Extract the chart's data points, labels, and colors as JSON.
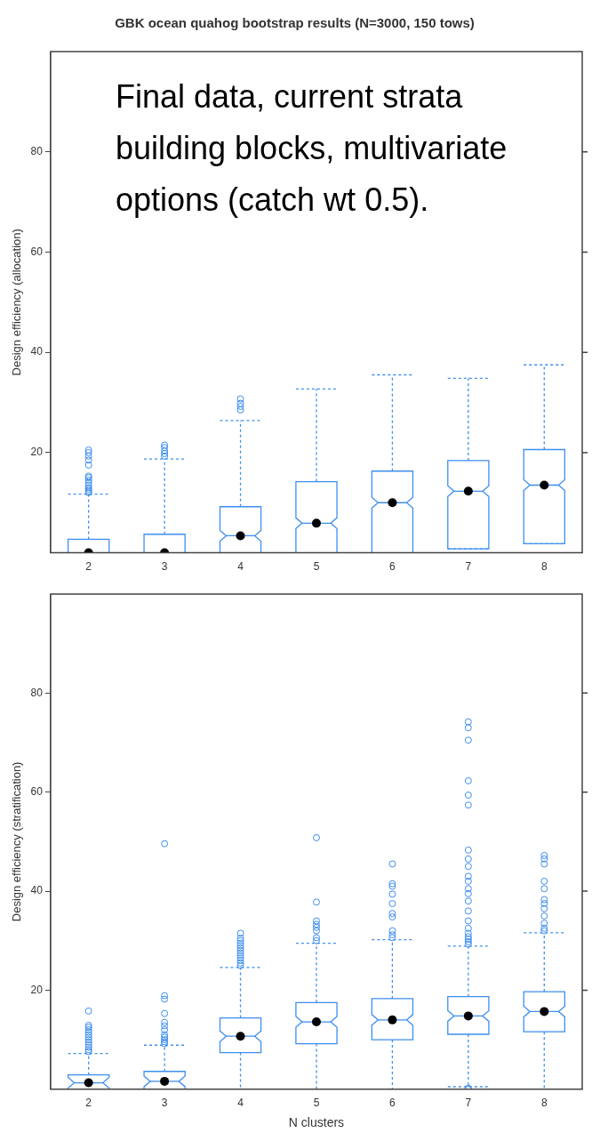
{
  "chart_data": [
    {
      "type": "box",
      "title": "GBK ocean quahog bootstrap results (N=3000, 150 tows)",
      "ylabel": "Design efficiency (allocation)",
      "annotations": [
        "Final data, current strata building blocks, multivariate options (catch wt 0.5)."
      ],
      "categories": [
        "2",
        "3",
        "4",
        "5",
        "6",
        "7",
        "8"
      ],
      "color": "#3d8ef0",
      "ylim": [
        0,
        100
      ],
      "yticks": [
        20,
        40,
        60,
        80
      ],
      "grid": false,
      "boxes": [
        {
          "low": 0,
          "q1": 0,
          "median": 0,
          "mean": 0,
          "q3": 2.7,
          "high": 11.7,
          "outliers": [
            12,
            12.3,
            12.7,
            13,
            13.5,
            14,
            14.5,
            15,
            15.3,
            17.5,
            18.5,
            19.3,
            20,
            20.5
          ]
        },
        {
          "low": 0,
          "q1": 0,
          "median": 0,
          "mean": 0,
          "q3": 3.7,
          "high": 18.7,
          "outliers": [
            19.3,
            19.8,
            20.3,
            21,
            21.5
          ]
        },
        {
          "low": 0,
          "q1": 0,
          "median": 3.4,
          "mean": 3.4,
          "q3": 9.2,
          "high": 26.4,
          "outliers": [
            28.5,
            29.2,
            29.8,
            30.7
          ]
        },
        {
          "low": 0,
          "q1": 0,
          "median": 5.9,
          "mean": 5.9,
          "q3": 14.2,
          "high": 32.7
        },
        {
          "low": 0,
          "q1": 0,
          "median": 10,
          "mean": 10,
          "q3": 16.3,
          "high": 35.5
        },
        {
          "low": 0.8,
          "q1": 0.8,
          "median": 12.3,
          "mean": 12.3,
          "q3": 18.4,
          "high": 34.8
        },
        {
          "low": 1.8,
          "q1": 1.8,
          "median": 13.5,
          "mean": 13.5,
          "q3": 20.6,
          "high": 37.5
        }
      ]
    },
    {
      "type": "box",
      "ylabel": "Design efficiency (stratification)",
      "xlabel": "N clusters",
      "categories": [
        "2",
        "3",
        "4",
        "5",
        "6",
        "7",
        "8"
      ],
      "color": "#3d8ef0",
      "ylim": [
        0,
        100
      ],
      "yticks": [
        20,
        40,
        60,
        80
      ],
      "grid": false,
      "boxes": [
        {
          "low": 0,
          "q1": 0,
          "median": 1.3,
          "mean": 1.3,
          "q3": 2.9,
          "high": 7.2,
          "outliers": [
            7.6,
            8,
            8.5,
            9,
            9.5,
            10,
            10.5,
            11,
            11.5,
            12,
            12.5,
            12.9,
            15.8
          ]
        },
        {
          "low": 0,
          "q1": 0,
          "median": 1.6,
          "mean": 1.6,
          "q3": 3.6,
          "high": 8.9,
          "outliers": [
            9.2,
            9.6,
            10,
            10.5,
            11,
            12,
            12.8,
            13.5,
            15.3,
            18.2,
            18.9,
            49.6
          ]
        },
        {
          "low": 0,
          "q1": 7.4,
          "median": 10.7,
          "mean": 10.7,
          "q3": 14.4,
          "high": 24.6,
          "outliers": [
            25,
            25.5,
            26,
            26.5,
            27,
            27.5,
            28,
            28.5,
            29,
            29.5,
            30,
            30.5,
            31.5
          ]
        },
        {
          "low": 0,
          "q1": 9.2,
          "median": 13.6,
          "mean": 13.6,
          "q3": 17.5,
          "high": 29.5,
          "outliers": [
            30,
            30.6,
            32,
            32.7,
            33.3,
            34,
            37.8,
            50.8
          ]
        },
        {
          "low": 0,
          "q1": 10,
          "median": 14,
          "mean": 14,
          "q3": 18.3,
          "high": 30.2,
          "outliers": [
            30.6,
            31.2,
            32,
            34.8,
            35.5,
            37.5,
            39.4,
            41,
            41.5,
            45.5
          ]
        },
        {
          "low": 0.5,
          "q1": 11.1,
          "median": 14.8,
          "mean": 14.8,
          "q3": 18.7,
          "high": 28.9,
          "outliers": [
            0,
            0.2,
            29.3,
            29.8,
            30.3,
            30.8,
            31.5,
            32.5,
            34,
            36,
            38,
            39.5,
            40.5,
            42,
            43,
            45,
            46.5,
            48.3,
            57.4,
            59.4,
            62.3,
            70.5,
            73,
            74.2
          ]
        },
        {
          "low": 0,
          "q1": 11.6,
          "median": 15.7,
          "mean": 15.7,
          "q3": 19.7,
          "high": 31.6,
          "outliers": [
            32,
            32.5,
            33.5,
            35,
            36.5,
            37.5,
            38.3,
            40.5,
            42,
            45.5,
            46.5,
            47.2
          ]
        }
      ]
    }
  ]
}
